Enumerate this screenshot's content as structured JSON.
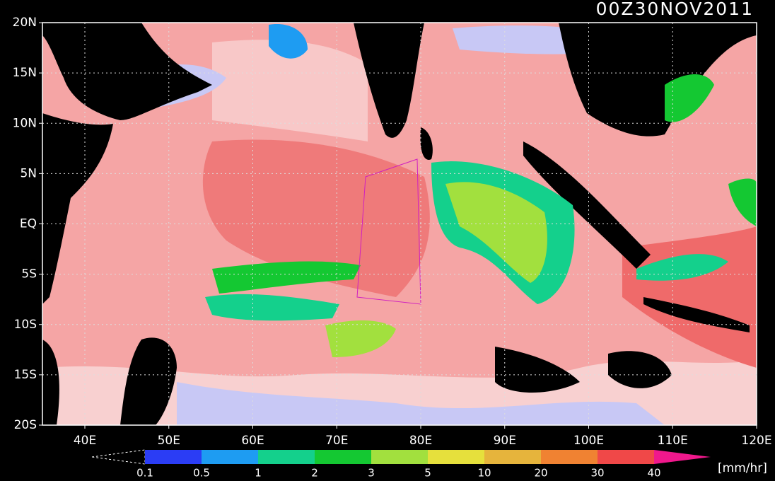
{
  "header": {
    "title": "00Z30NOV2011"
  },
  "map": {
    "lat_labels": [
      "20N",
      "15N",
      "10N",
      "5N",
      "EQ",
      "5S",
      "10S",
      "15S",
      "20S"
    ],
    "lon_labels": [
      "40E",
      "50E",
      "60E",
      "70E",
      "80E",
      "90E",
      "100E",
      "110E",
      "120E"
    ]
  },
  "colorbar": {
    "labels": [
      "0.1",
      "0.5",
      "1",
      "2",
      "3",
      "5",
      "10",
      "20",
      "30",
      "40"
    ],
    "colors": [
      "#2b3df5",
      "#1e9cf2",
      "#14d08c",
      "#14c832",
      "#a2e03e",
      "#e6e03c",
      "#e6b43c",
      "#f08232",
      "#f04848"
    ],
    "over_color": "#f0188c",
    "unit": "[mm/hr]"
  }
}
